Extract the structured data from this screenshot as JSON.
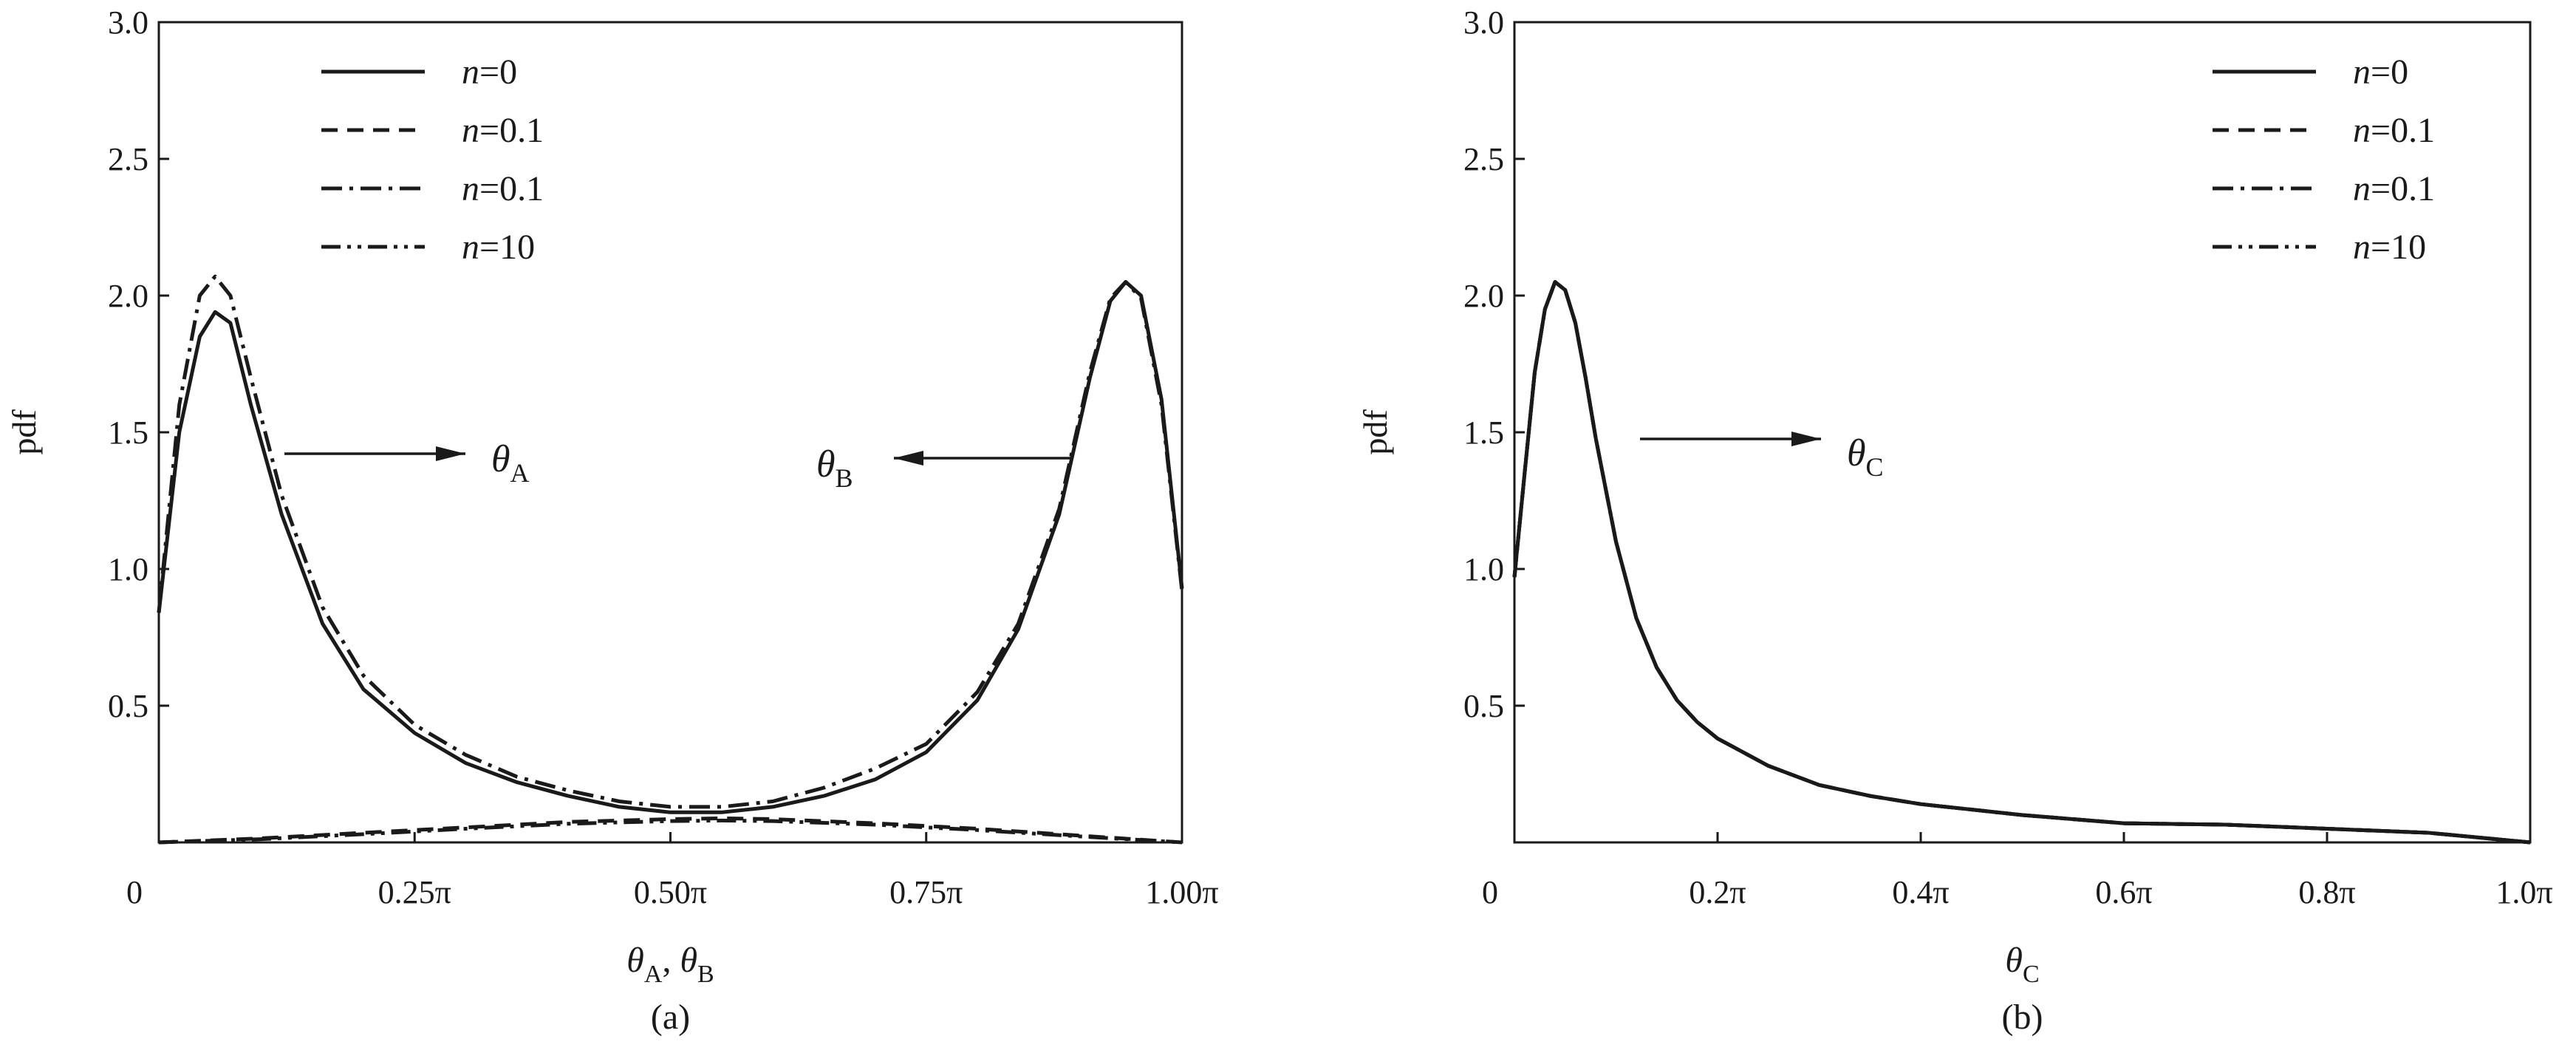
{
  "chart_data": [
    {
      "type": "line",
      "panel_label": "(a)",
      "xlabel": "θA, θB",
      "xlabel_parts": [
        {
          "sym": "θ",
          "sub": "A",
          "sep": ", "
        },
        {
          "sym": "θ",
          "sub": "B",
          "sep": ""
        }
      ],
      "ylabel": "pdf",
      "xlim": [
        0,
        1.0
      ],
      "ylim": [
        0,
        3.0
      ],
      "x_unit": "π",
      "x_ticks": [
        {
          "v": 0,
          "label": "0"
        },
        {
          "v": 0.25,
          "label": "0.25π"
        },
        {
          "v": 0.5,
          "label": "0.50π"
        },
        {
          "v": 0.75,
          "label": "0.75π"
        },
        {
          "v": 1.0,
          "label": "1.00π"
        }
      ],
      "y_ticks": [
        {
          "v": 0.5,
          "label": "0.5"
        },
        {
          "v": 1.0,
          "label": "1.0"
        },
        {
          "v": 1.5,
          "label": "1.5"
        },
        {
          "v": 2.0,
          "label": "2.0"
        },
        {
          "v": 2.5,
          "label": "2.5"
        },
        {
          "v": 3.0,
          "label": "3.0"
        }
      ],
      "grid": false,
      "legend_position": "top-left",
      "series": [
        {
          "name": "n=0",
          "italic": "n",
          "rest": "=0",
          "style": "solid",
          "x": [
            0.0,
            0.02,
            0.04,
            0.055,
            0.07,
            0.09,
            0.12,
            0.16,
            0.2,
            0.25,
            0.3,
            0.35,
            0.4,
            0.45,
            0.5,
            0.55,
            0.6,
            0.65,
            0.7,
            0.75,
            0.8,
            0.84,
            0.88,
            0.91,
            0.93,
            0.945,
            0.96,
            0.98,
            1.0
          ],
          "y": [
            0.84,
            1.5,
            1.85,
            1.94,
            1.9,
            1.6,
            1.2,
            0.8,
            0.56,
            0.4,
            0.29,
            0.22,
            0.17,
            0.13,
            0.11,
            0.11,
            0.13,
            0.17,
            0.23,
            0.33,
            0.52,
            0.78,
            1.2,
            1.7,
            1.98,
            2.05,
            2.0,
            1.62,
            0.93
          ]
        },
        {
          "name": "n=0.1",
          "italic": "n",
          "rest": "=0.1",
          "style": "dash",
          "x": [
            0.0,
            0.1,
            0.2,
            0.3,
            0.4,
            0.5,
            0.55,
            0.6,
            0.7,
            0.8,
            0.9,
            1.0
          ],
          "y": [
            0.0,
            0.015,
            0.035,
            0.055,
            0.075,
            0.085,
            0.088,
            0.085,
            0.07,
            0.05,
            0.025,
            0.0
          ]
        },
        {
          "name": "n=0.1",
          "italic": "n",
          "rest": "=0.1",
          "style": "dashdot",
          "x": [
            0.0,
            0.02,
            0.04,
            0.055,
            0.07,
            0.09,
            0.12,
            0.16,
            0.2,
            0.25,
            0.3,
            0.35,
            0.4,
            0.45,
            0.5,
            0.55,
            0.6,
            0.65,
            0.7,
            0.75,
            0.8,
            0.84,
            0.88,
            0.91,
            0.93,
            0.945,
            0.96,
            0.98,
            1.0
          ],
          "y": [
            0.84,
            1.6,
            2.0,
            2.07,
            2.0,
            1.7,
            1.27,
            0.86,
            0.61,
            0.43,
            0.32,
            0.24,
            0.19,
            0.15,
            0.13,
            0.13,
            0.15,
            0.2,
            0.27,
            0.36,
            0.55,
            0.8,
            1.22,
            1.72,
            1.99,
            2.05,
            1.99,
            1.6,
            0.92
          ]
        },
        {
          "name": "n=10",
          "italic": "n",
          "rest": "=10",
          "style": "dashdotdot",
          "x": [
            0.0,
            0.1,
            0.2,
            0.3,
            0.4,
            0.5,
            0.55,
            0.6,
            0.7,
            0.8,
            0.9,
            1.0
          ],
          "y": [
            0.0,
            0.012,
            0.03,
            0.05,
            0.068,
            0.078,
            0.08,
            0.078,
            0.065,
            0.045,
            0.022,
            0.0
          ]
        }
      ],
      "annotations": [
        {
          "sym": "θ",
          "sub": "A",
          "direction": "right"
        },
        {
          "sym": "θ",
          "sub": "B",
          "direction": "left"
        }
      ]
    },
    {
      "type": "line",
      "panel_label": "(b)",
      "xlabel": "θC",
      "xlabel_parts": [
        {
          "sym": "θ",
          "sub": "C",
          "sep": ""
        }
      ],
      "ylabel": "pdf",
      "xlim": [
        0,
        1.0
      ],
      "ylim": [
        0,
        3.0
      ],
      "x_unit": "π",
      "x_ticks": [
        {
          "v": 0,
          "label": "0"
        },
        {
          "v": 0.2,
          "label": "0.2π"
        },
        {
          "v": 0.4,
          "label": "0.4π"
        },
        {
          "v": 0.6,
          "label": "0.6π"
        },
        {
          "v": 0.8,
          "label": "0.8π"
        },
        {
          "v": 1.0,
          "label": "1.0π"
        }
      ],
      "y_ticks": [
        {
          "v": 0.5,
          "label": "0.5"
        },
        {
          "v": 1.0,
          "label": "1.0"
        },
        {
          "v": 1.5,
          "label": "1.5"
        },
        {
          "v": 2.0,
          "label": "2.0"
        },
        {
          "v": 2.5,
          "label": "2.5"
        },
        {
          "v": 3.0,
          "label": "3.0"
        }
      ],
      "grid": false,
      "legend_position": "top-right",
      "series": [
        {
          "name": "n=0",
          "italic": "n",
          "rest": "=0",
          "style": "solid",
          "x": [
            0.0,
            0.01,
            0.02,
            0.03,
            0.04,
            0.05,
            0.06,
            0.07,
            0.08,
            0.1,
            0.12,
            0.14,
            0.16,
            0.18,
            0.2,
            0.25,
            0.3,
            0.35,
            0.4,
            0.5,
            0.6,
            0.7,
            0.8,
            0.9,
            1.0
          ],
          "y": [
            0.97,
            1.35,
            1.72,
            1.95,
            2.05,
            2.02,
            1.9,
            1.7,
            1.48,
            1.1,
            0.82,
            0.64,
            0.52,
            0.44,
            0.38,
            0.28,
            0.21,
            0.17,
            0.14,
            0.1,
            0.07,
            0.065,
            0.05,
            0.035,
            0.0
          ]
        },
        {
          "name": "n=0.1",
          "italic": "n",
          "rest": "=0.1",
          "style": "dash",
          "x": [
            0.0,
            0.01,
            0.02,
            0.03,
            0.04,
            0.05,
            0.06,
            0.07,
            0.08,
            0.1,
            0.12,
            0.14,
            0.16,
            0.18,
            0.2,
            0.25,
            0.3,
            0.35,
            0.4,
            0.5,
            0.6,
            0.7,
            0.8,
            0.9,
            1.0
          ],
          "y": [
            0.97,
            1.35,
            1.72,
            1.95,
            2.05,
            2.02,
            1.9,
            1.7,
            1.48,
            1.1,
            0.82,
            0.64,
            0.52,
            0.44,
            0.38,
            0.28,
            0.21,
            0.17,
            0.14,
            0.1,
            0.07,
            0.065,
            0.05,
            0.035,
            0.0
          ]
        },
        {
          "name": "n=0.1",
          "italic": "n",
          "rest": "=0.1",
          "style": "dashdot",
          "x": [
            0.0,
            0.01,
            0.02,
            0.03,
            0.04,
            0.05,
            0.06,
            0.07,
            0.08,
            0.1,
            0.12,
            0.14,
            0.16,
            0.18,
            0.2,
            0.25,
            0.3,
            0.35,
            0.4,
            0.5,
            0.6,
            0.7,
            0.8,
            0.9,
            1.0
          ],
          "y": [
            0.97,
            1.35,
            1.72,
            1.95,
            2.05,
            2.02,
            1.9,
            1.7,
            1.48,
            1.1,
            0.82,
            0.64,
            0.52,
            0.44,
            0.38,
            0.28,
            0.21,
            0.17,
            0.14,
            0.1,
            0.07,
            0.065,
            0.05,
            0.035,
            0.0
          ]
        },
        {
          "name": "n=10",
          "italic": "n",
          "rest": "=10",
          "style": "dashdotdot",
          "x": [
            0.0,
            0.01,
            0.02,
            0.03,
            0.04,
            0.05,
            0.06,
            0.07,
            0.08,
            0.1,
            0.12,
            0.14,
            0.16,
            0.18,
            0.2,
            0.25,
            0.3,
            0.35,
            0.4,
            0.5,
            0.6,
            0.7,
            0.8,
            0.9,
            1.0
          ],
          "y": [
            0.97,
            1.35,
            1.72,
            1.95,
            2.05,
            2.02,
            1.9,
            1.7,
            1.48,
            1.1,
            0.82,
            0.64,
            0.52,
            0.44,
            0.38,
            0.28,
            0.21,
            0.17,
            0.14,
            0.1,
            0.07,
            0.065,
            0.05,
            0.035,
            0.0
          ]
        }
      ],
      "annotations": [
        {
          "sym": "θ",
          "sub": "C",
          "direction": "right"
        }
      ]
    }
  ]
}
